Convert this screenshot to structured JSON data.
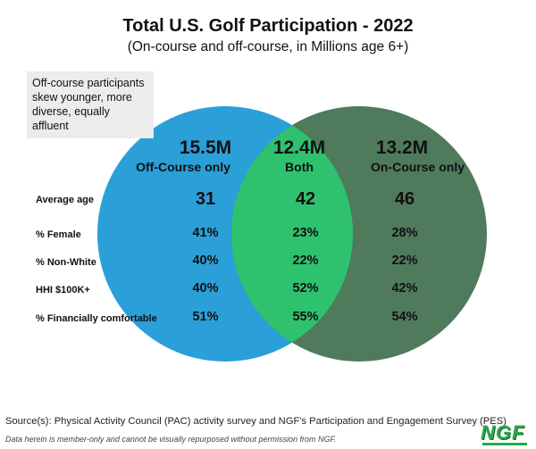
{
  "header": {
    "title": "Total U.S. Golf Participation - 2022",
    "subtitle": "(On-course and off-course, in Millions age 6+)"
  },
  "callout": {
    "lines": [
      "Off-course participants",
      "skew younger, more",
      "diverse, equally affluent"
    ]
  },
  "groups": {
    "off_course": {
      "value": "15.5M",
      "label": "Off-Course only"
    },
    "both": {
      "value": "12.4M",
      "label": "Both"
    },
    "on_course": {
      "value": "13.2M",
      "label": "On-Course only"
    }
  },
  "rows": [
    {
      "label": "Average age",
      "off_course": "31",
      "both": "42",
      "on_course": "46"
    },
    {
      "label": "% Female",
      "off_course": "41%",
      "both": "23%",
      "on_course": "28%"
    },
    {
      "label": "% Non-White",
      "off_course": "40%",
      "both": "22%",
      "on_course": "22%"
    },
    {
      "label": "HHI $100K+",
      "off_course": "40%",
      "both": "52%",
      "on_course": "42%"
    },
    {
      "label": "% Financially comfortable",
      "off_course": "51%",
      "both": "55%",
      "on_course": "54%"
    }
  ],
  "colors": {
    "off_course_circle": "#2b9fd8",
    "on_course_circle": "#4f7a5c",
    "overlap": "#2ec26e"
  },
  "footer": {
    "source": "Source(s): Physical Activity Council (PAC) activity survey and NGF's Participation and Engagement Survey (PES)",
    "disclaimer": "Data herein is member-only and cannot be visually repurposed without permission from NGF.",
    "logo": "NGF"
  }
}
